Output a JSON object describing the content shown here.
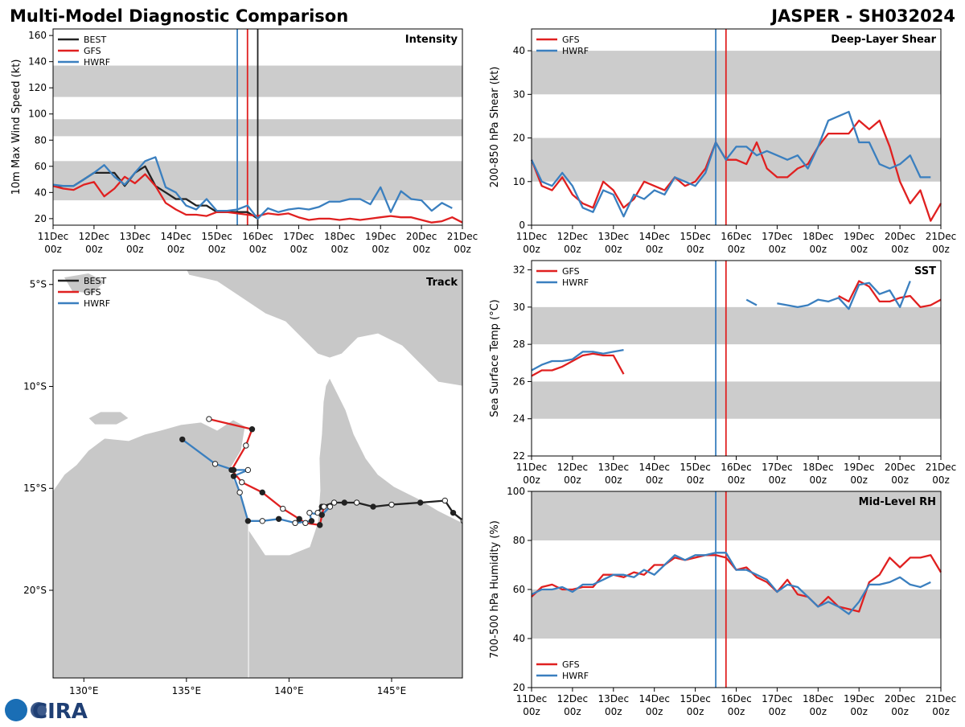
{
  "header": {
    "title": "Multi-Model Diagnostic Comparison",
    "storm": "JASPER - SH032024"
  },
  "logo": "CIRA",
  "chart_data": [
    {
      "type": "line",
      "title": "Intensity",
      "ylabel": "10m Max Wind Speed (kt)",
      "legend": "upper left",
      "band_color": "#cccccc",
      "bands": [
        [
          34,
          64
        ],
        [
          83,
          96
        ],
        [
          113,
          137
        ]
      ],
      "xlim": [
        "11Dec 00z",
        "21Dec 00z"
      ],
      "xticks": [
        "11Dec 00z",
        "12Dec 00z",
        "13Dec 00z",
        "14Dec 00z",
        "15Dec 00z",
        "16Dec 00z",
        "17Dec 00z",
        "18Dec 00z",
        "19Dec 00z",
        "20Dec 00z",
        "21Dec 00z"
      ],
      "ylim": [
        15,
        165
      ],
      "yticks": [
        20,
        40,
        60,
        80,
        100,
        120,
        140,
        160
      ],
      "markers": [
        {
          "x": "15Dec 12z",
          "color": "#3a7fbf"
        },
        {
          "x": "15Dec 18z",
          "color": "#e02020"
        },
        {
          "x": "16Dec 00z",
          "color": "#222222"
        }
      ],
      "x": [
        "11Dec 00z",
        "11Dec 06z",
        "11Dec 12z",
        "11Dec 18z",
        "12Dec 00z",
        "12Dec 06z",
        "12Dec 12z",
        "12Dec 18z",
        "13Dec 00z",
        "13Dec 06z",
        "13Dec 12z",
        "13Dec 18z",
        "14Dec 00z",
        "14Dec 06z",
        "14Dec 12z",
        "14Dec 18z",
        "15Dec 00z",
        "15Dec 06z",
        "15Dec 12z",
        "15Dec 18z",
        "16Dec 00z",
        "16Dec 06z",
        "16Dec 12z",
        "16Dec 18z",
        "17Dec 00z",
        "17Dec 06z",
        "17Dec 12z",
        "17Dec 18z",
        "18Dec 00z",
        "18Dec 06z",
        "18Dec 12z",
        "18Dec 18z",
        "19Dec 00z",
        "19Dec 06z",
        "19Dec 12z",
        "19Dec 18z",
        "20Dec 00z",
        "20Dec 06z",
        "20Dec 12z",
        "20Dec 18z",
        "21Dec 00z"
      ],
      "series": [
        {
          "name": "BEST",
          "color": "#222222",
          "values": [
            45,
            45,
            45,
            50,
            55,
            55,
            55,
            45,
            55,
            60,
            45,
            40,
            35,
            35,
            30,
            30,
            25,
            25,
            25,
            25,
            20,
            null,
            null,
            null,
            null,
            null,
            null,
            null,
            null,
            null,
            null,
            null,
            null,
            null,
            null,
            null,
            null,
            null,
            null,
            null,
            null
          ]
        },
        {
          "name": "GFS",
          "color": "#e02020",
          "values": [
            45,
            43,
            42,
            46,
            48,
            37,
            43,
            52,
            47,
            54,
            45,
            32,
            27,
            23,
            23,
            22,
            25,
            25,
            24,
            23,
            22,
            24,
            23,
            24,
            21,
            19,
            20,
            20,
            19,
            20,
            19,
            20,
            21,
            22,
            21,
            21,
            19,
            17,
            18,
            21,
            17
          ]
        },
        {
          "name": "HWRF",
          "color": "#3a7fbf",
          "values": [
            46,
            45,
            45,
            50,
            55,
            61,
            52,
            46,
            55,
            64,
            67,
            44,
            40,
            30,
            27,
            35,
            26,
            26,
            27,
            30,
            20,
            28,
            25,
            27,
            28,
            27,
            29,
            33,
            33,
            35,
            35,
            31,
            44,
            25,
            41,
            35,
            34,
            26,
            32,
            28,
            null
          ]
        }
      ]
    },
    {
      "type": "line",
      "title": "Deep-Layer Shear",
      "ylabel": "200-850 hPa Shear (kt)",
      "legend": "upper left",
      "band_color": "#cccccc",
      "bands": [
        [
          10,
          20
        ],
        [
          30,
          40
        ]
      ],
      "xlim": [
        "11Dec 00z",
        "21Dec 00z"
      ],
      "xticks": [
        "11Dec 00z",
        "12Dec 00z",
        "13Dec 00z",
        "14Dec 00z",
        "15Dec 00z",
        "16Dec 00z",
        "17Dec 00z",
        "18Dec 00z",
        "19Dec 00z",
        "20Dec 00z",
        "21Dec 00z"
      ],
      "ylim": [
        0,
        45
      ],
      "yticks": [
        0,
        10,
        20,
        30,
        40
      ],
      "markers": [
        {
          "x": "15Dec 12z",
          "color": "#3a7fbf"
        },
        {
          "x": "15Dec 18z",
          "color": "#e02020"
        }
      ],
      "x": [
        "11Dec 00z",
        "11Dec 06z",
        "11Dec 12z",
        "11Dec 18z",
        "12Dec 00z",
        "12Dec 06z",
        "12Dec 12z",
        "12Dec 18z",
        "13Dec 00z",
        "13Dec 06z",
        "13Dec 12z",
        "13Dec 18z",
        "14Dec 00z",
        "14Dec 06z",
        "14Dec 12z",
        "14Dec 18z",
        "15Dec 00z",
        "15Dec 06z",
        "15Dec 12z",
        "15Dec 18z",
        "16Dec 00z",
        "16Dec 06z",
        "16Dec 12z",
        "16Dec 18z",
        "17Dec 00z",
        "17Dec 06z",
        "17Dec 12z",
        "17Dec 18z",
        "18Dec 00z",
        "18Dec 06z",
        "18Dec 12z",
        "18Dec 18z",
        "19Dec 00z",
        "19Dec 06z",
        "19Dec 12z",
        "19Dec 18z",
        "20Dec 00z",
        "20Dec 06z",
        "20Dec 12z",
        "20Dec 18z",
        "21Dec 00z"
      ],
      "series": [
        {
          "name": "GFS",
          "color": "#e02020",
          "values": [
            15,
            9,
            8,
            11,
            7,
            5,
            4,
            10,
            8,
            4,
            6,
            10,
            9,
            8,
            11,
            9,
            10,
            13,
            19,
            15,
            15,
            14,
            19,
            13,
            11,
            11,
            13,
            14,
            18,
            21,
            21,
            21,
            24,
            22,
            24,
            18,
            10,
            5,
            8,
            1,
            5
          ]
        },
        {
          "name": "HWRF",
          "color": "#3a7fbf",
          "values": [
            15,
            10,
            9,
            12,
            9,
            4,
            3,
            8,
            7,
            2,
            7,
            6,
            8,
            7,
            11,
            10,
            9,
            12,
            19,
            15,
            18,
            18,
            16,
            17,
            16,
            15,
            16,
            13,
            18,
            24,
            25,
            26,
            19,
            19,
            14,
            13,
            14,
            16,
            11,
            11,
            null
          ]
        }
      ]
    },
    {
      "type": "track",
      "title": "Track",
      "legend": "upper left",
      "land_color": "#c8c8c8",
      "xlim": [
        128.5,
        148.45
      ],
      "ylim": [
        -24.3,
        -4.3
      ],
      "xticks": [
        {
          "value": 130,
          "label": "130°E"
        },
        {
          "value": 135,
          "label": "135°E"
        },
        {
          "value": 140,
          "label": "140°E"
        },
        {
          "value": 145,
          "label": "145°E"
        }
      ],
      "yticks": [
        {
          "value": -5,
          "label": "5°S"
        },
        {
          "value": -10,
          "label": "10°S"
        },
        {
          "value": -15,
          "label": "15°S"
        },
        {
          "value": -20,
          "label": "20°S"
        }
      ],
      "series": [
        {
          "name": "BEST",
          "color": "#222222",
          "x": [
            148.5,
            148.0,
            147.6,
            146.4,
            145.0,
            144.1,
            143.3,
            142.7,
            142.2,
            141.6,
            141.4
          ],
          "y": [
            -16.6,
            -16.2,
            -15.6,
            -15.7,
            -15.8,
            -15.9,
            -15.7,
            -15.7,
            -15.7,
            -15.9,
            -16.2
          ]
        },
        {
          "name": "GFS",
          "color": "#e02020",
          "x": [
            141.7,
            141.5,
            140.8,
            140.5,
            139.7,
            138.7,
            137.7,
            137.2,
            137.9,
            138.2,
            136.1
          ],
          "y": [
            -15.9,
            -16.8,
            -16.7,
            -16.5,
            -16.0,
            -15.2,
            -14.7,
            -14.1,
            -12.9,
            -12.1,
            -11.6
          ]
        },
        {
          "name": "HWRF",
          "color": "#3a7fbf",
          "x": [
            142.0,
            141.6,
            141.0,
            141.1,
            140.3,
            139.5,
            138.7,
            138.0,
            137.6,
            137.3,
            138.0,
            137.3,
            136.4,
            134.8
          ],
          "y": [
            -15.9,
            -16.3,
            -16.2,
            -16.6,
            -16.7,
            -16.5,
            -16.6,
            -16.6,
            -15.2,
            -14.4,
            -14.1,
            -14.1,
            -13.8,
            -12.6
          ]
        }
      ]
    },
    {
      "type": "line",
      "title": "SST",
      "ylabel": "Sea Surface Temp (°C)",
      "legend": "upper left",
      "band_color": "#cccccc",
      "bands": [
        [
          24,
          26
        ],
        [
          28,
          30
        ]
      ],
      "xlim": [
        "11Dec 00z",
        "21Dec 00z"
      ],
      "xticks": [
        "11Dec 00z",
        "12Dec 00z",
        "13Dec 00z",
        "14Dec 00z",
        "15Dec 00z",
        "16Dec 00z",
        "17Dec 00z",
        "18Dec 00z",
        "19Dec 00z",
        "20Dec 00z",
        "21Dec 00z"
      ],
      "ylim": [
        22,
        32.5
      ],
      "yticks": [
        22,
        24,
        26,
        28,
        30,
        32
      ],
      "markers": [
        {
          "x": "15Dec 12z",
          "color": "#3a7fbf"
        },
        {
          "x": "15Dec 18z",
          "color": "#e02020"
        }
      ],
      "x": [
        "11Dec 00z",
        "11Dec 06z",
        "11Dec 12z",
        "11Dec 18z",
        "12Dec 00z",
        "12Dec 06z",
        "12Dec 12z",
        "12Dec 18z",
        "13Dec 00z",
        "13Dec 06z",
        "13Dec 12z",
        "13Dec 18z",
        "14Dec 00z",
        "14Dec 06z",
        "14Dec 12z",
        "14Dec 18z",
        "15Dec 00z",
        "15Dec 06z",
        "15Dec 12z",
        "15Dec 18z",
        "16Dec 00z",
        "16Dec 06z",
        "16Dec 12z",
        "16Dec 18z",
        "17Dec 00z",
        "17Dec 06z",
        "17Dec 12z",
        "17Dec 18z",
        "18Dec 00z",
        "18Dec 06z",
        "18Dec 12z",
        "18Dec 18z",
        "19Dec 00z",
        "19Dec 06z",
        "19Dec 12z",
        "19Dec 18z",
        "20Dec 00z",
        "20Dec 06z",
        "20Dec 12z",
        "20Dec 18z",
        "21Dec 00z"
      ],
      "series": [
        {
          "name": "GFS",
          "color": "#e02020",
          "values": [
            26.3,
            26.6,
            26.6,
            26.8,
            27.1,
            27.4,
            27.5,
            27.4,
            27.4,
            26.4,
            null,
            null,
            null,
            null,
            null,
            null,
            null,
            null,
            null,
            null,
            null,
            null,
            null,
            null,
            null,
            null,
            null,
            null,
            null,
            null,
            30.6,
            30.3,
            31.4,
            31.1,
            30.3,
            30.3,
            30.5,
            30.6,
            30.0,
            30.1,
            30.4
          ]
        },
        {
          "name": "HWRF",
          "color": "#3a7fbf",
          "values": [
            26.6,
            26.9,
            27.1,
            27.1,
            27.2,
            27.6,
            27.6,
            27.5,
            27.6,
            27.7,
            null,
            null,
            null,
            null,
            null,
            null,
            null,
            null,
            null,
            null,
            null,
            30.4,
            30.1,
            null,
            30.2,
            30.1,
            30.0,
            30.1,
            30.4,
            30.3,
            30.5,
            29.9,
            31.2,
            31.3,
            30.7,
            30.9,
            30.0,
            31.4,
            null,
            null,
            null
          ]
        }
      ]
    },
    {
      "type": "line",
      "title": "Mid-Level RH",
      "ylabel": "700-500 hPa Humidity (%)",
      "legend": "lower left",
      "band_color": "#cccccc",
      "bands": [
        [
          40,
          60
        ],
        [
          80,
          100
        ]
      ],
      "xlim": [
        "11Dec 00z",
        "21Dec 00z"
      ],
      "xticks": [
        "11Dec 00z",
        "12Dec 00z",
        "13Dec 00z",
        "14Dec 00z",
        "15Dec 00z",
        "16Dec 00z",
        "17Dec 00z",
        "18Dec 00z",
        "19Dec 00z",
        "20Dec 00z",
        "21Dec 00z"
      ],
      "ylim": [
        20,
        100
      ],
      "yticks": [
        20,
        40,
        60,
        80,
        100
      ],
      "markers": [
        {
          "x": "15Dec 12z",
          "color": "#3a7fbf"
        },
        {
          "x": "15Dec 18z",
          "color": "#e02020"
        }
      ],
      "x": [
        "11Dec 00z",
        "11Dec 06z",
        "11Dec 12z",
        "11Dec 18z",
        "12Dec 00z",
        "12Dec 06z",
        "12Dec 12z",
        "12Dec 18z",
        "13Dec 00z",
        "13Dec 06z",
        "13Dec 12z",
        "13Dec 18z",
        "14Dec 00z",
        "14Dec 06z",
        "14Dec 12z",
        "14Dec 18z",
        "15Dec 00z",
        "15Dec 06z",
        "15Dec 12z",
        "15Dec 18z",
        "16Dec 00z",
        "16Dec 06z",
        "16Dec 12z",
        "16Dec 18z",
        "17Dec 00z",
        "17Dec 06z",
        "17Dec 12z",
        "17Dec 18z",
        "18Dec 00z",
        "18Dec 06z",
        "18Dec 12z",
        "18Dec 18z",
        "19Dec 00z",
        "19Dec 06z",
        "19Dec 12z",
        "19Dec 18z",
        "20Dec 00z",
        "20Dec 06z",
        "20Dec 12z",
        "20Dec 18z",
        "21Dec 00z"
      ],
      "series": [
        {
          "name": "GFS",
          "color": "#e02020",
          "values": [
            57,
            61,
            62,
            60,
            60,
            61,
            61,
            66,
            66,
            65,
            67,
            66,
            70,
            70,
            73,
            72,
            73,
            74,
            74,
            73,
            68,
            69,
            65,
            63,
            59,
            64,
            58,
            57,
            53,
            57,
            53,
            52,
            51,
            63,
            66,
            73,
            69,
            73,
            73,
            74,
            67
          ]
        },
        {
          "name": "HWRF",
          "color": "#3a7fbf",
          "values": [
            58,
            60,
            60,
            61,
            59,
            62,
            62,
            64,
            66,
            66,
            65,
            68,
            66,
            70,
            74,
            72,
            74,
            74,
            75,
            75,
            68,
            68,
            66,
            64,
            59,
            62,
            61,
            57,
            53,
            55,
            53,
            50,
            55,
            62,
            62,
            63,
            65,
            62,
            61,
            63,
            null
          ]
        }
      ]
    }
  ]
}
